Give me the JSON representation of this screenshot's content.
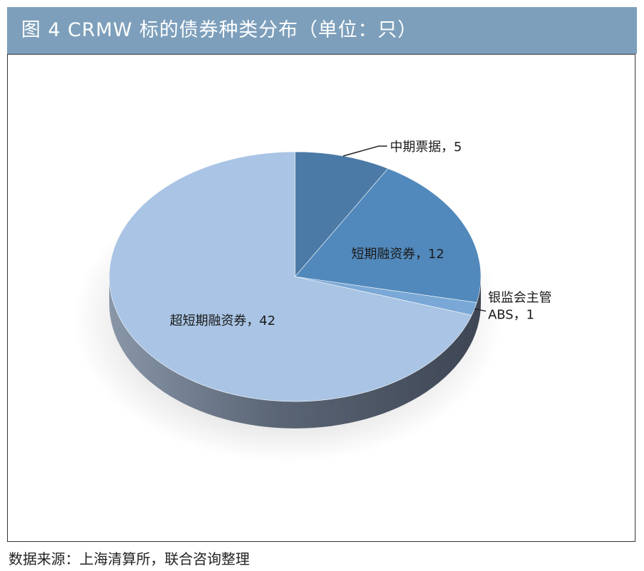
{
  "title": "图 4 CRMW 标的债券种类分布（单位：只）",
  "source": "数据来源：上海清算所，联合咨询整理",
  "colors": {
    "title_bar": "#7d9fbb",
    "side_light": "#8896a8",
    "side_dark": "#3e4654"
  },
  "chart_data": {
    "type": "pie",
    "title": "图 4 CRMW 标的债券种类分布（单位：只）",
    "unit": "只",
    "slices": [
      {
        "label": "中期票据，5",
        "name": "中期票据",
        "value": 5,
        "color": "#4b7aa6"
      },
      {
        "label": "短期融资券，12",
        "name": "短期融资券",
        "value": 12,
        "color": "#5289bc"
      },
      {
        "label": "银监会主管ABS，1",
        "label_lines": [
          "银监会主管",
          "ABS，1"
        ],
        "name": "银监会主管ABS",
        "value": 1,
        "color": "#7aa8d6"
      },
      {
        "label": "超短期融资券，42",
        "name": "超短期融资券",
        "value": 42,
        "color": "#a9c4e4"
      }
    ],
    "legend": "none",
    "style": "3d-tilted"
  }
}
